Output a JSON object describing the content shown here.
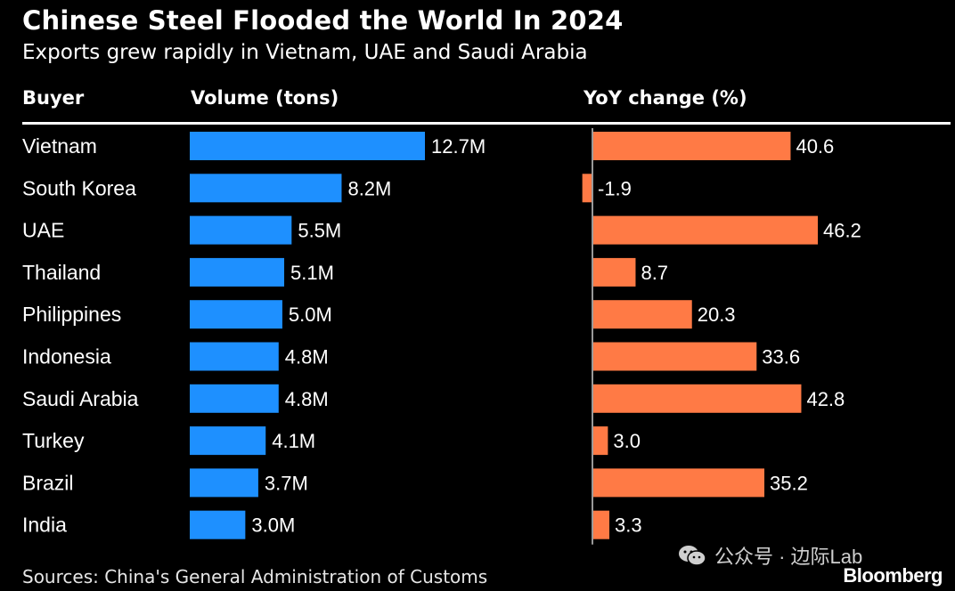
{
  "chart_data": {
    "type": "bar",
    "title": "Chinese Steel Flooded the World In 2024",
    "subtitle": "Exports grew rapidly in Vietnam, UAE and Saudi Arabia",
    "columns": {
      "buyer": "Buyer",
      "volume": "Volume (tons)",
      "yoy": "YoY change (%)"
    },
    "categories": [
      "Vietnam",
      "South Korea",
      "UAE",
      "Thailand",
      "Philippines",
      "Indonesia",
      "Saudi Arabia",
      "Turkey",
      "Brazil",
      "India"
    ],
    "series": [
      {
        "name": "Volume (tons)",
        "unit": "million tons",
        "values": [
          12.7,
          8.2,
          5.5,
          5.1,
          5.0,
          4.8,
          4.8,
          4.1,
          3.7,
          3.0
        ],
        "labels": [
          "12.7M",
          "8.2M",
          "5.5M",
          "5.1M",
          "5.0M",
          "4.8M",
          "4.8M",
          "4.1M",
          "3.7M",
          "3.0M"
        ],
        "color": "#1e90ff"
      },
      {
        "name": "YoY change (%)",
        "unit": "%",
        "values": [
          40.6,
          -1.9,
          46.2,
          8.7,
          20.3,
          33.6,
          42.8,
          3.0,
          35.2,
          3.3
        ],
        "labels": [
          "40.6",
          "-1.9",
          "46.2",
          "8.7",
          "20.3",
          "33.6",
          "42.8",
          "3.0",
          "35.2",
          "3.3"
        ],
        "color": "#ff7a45"
      }
    ],
    "xlim_volume": [
      0,
      12.7
    ],
    "xlim_yoy": [
      -1.9,
      46.2
    ],
    "grid": false,
    "legend": "none",
    "source": "Sources: China's General Administration of Customs",
    "brand": "Bloomberg"
  },
  "watermark": {
    "text": "公众号 · 边际Lab",
    "icon": "wechat-icon"
  },
  "colors": {
    "background": "#000000",
    "text": "#ffffff",
    "volume_bar": "#1e90ff",
    "yoy_bar": "#ff7a45"
  }
}
